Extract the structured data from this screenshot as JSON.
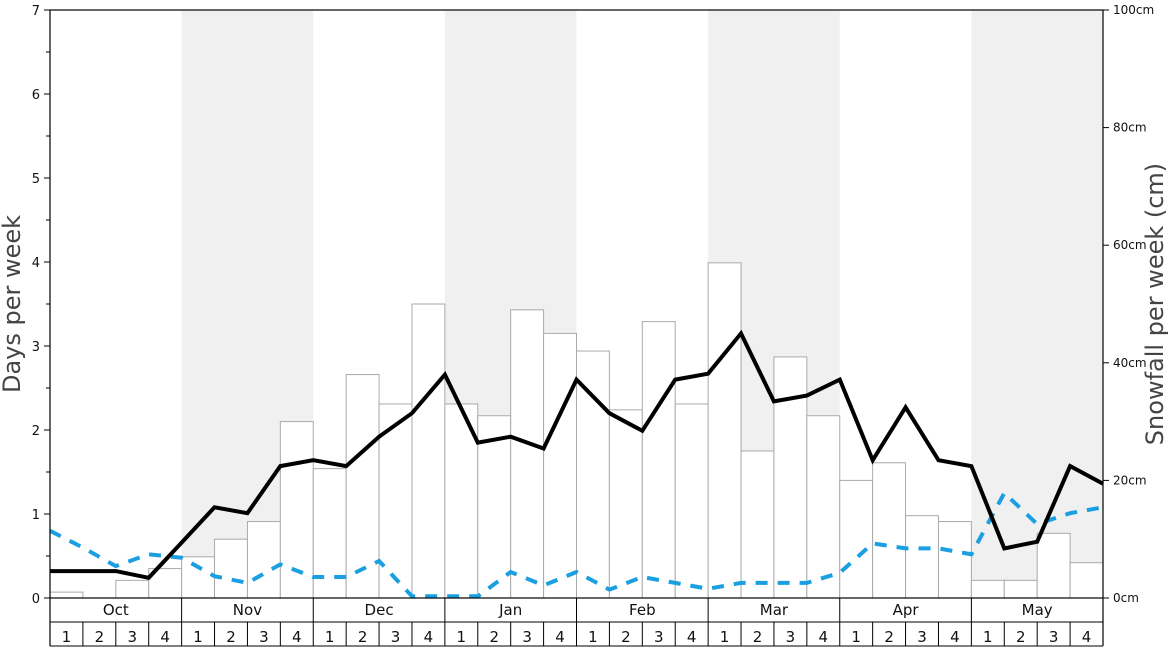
{
  "chart_data": {
    "type": "bar+line",
    "months": [
      "Oct",
      "Nov",
      "Dec",
      "Jan",
      "Feb",
      "Mar",
      "Apr",
      "May"
    ],
    "weeks": [
      "1",
      "2",
      "3",
      "4"
    ],
    "ylabel_left": "Days per week",
    "ylabel_right": "Snowfall per week (cm)",
    "ylim_left": [
      0,
      7
    ],
    "yticks_left": [
      "0",
      "1",
      "2",
      "3",
      "4",
      "5",
      "6",
      "7"
    ],
    "ylim_right": [
      0,
      100
    ],
    "yticks_right": [
      "0cm",
      "20cm",
      "40cm",
      "60cm",
      "80cm",
      "100cm"
    ],
    "shaded_months": [
      "Nov",
      "Jan",
      "Mar",
      "May"
    ],
    "bars_snowfall_cm": [
      1,
      0,
      3,
      5,
      7,
      10,
      13,
      30,
      22,
      38,
      33,
      50,
      33,
      31,
      49,
      45,
      42,
      32,
      47,
      33,
      57,
      25,
      41,
      31,
      20,
      23,
      14,
      13,
      3,
      3,
      11,
      6
    ],
    "line_black_days": [
      0.32,
      0.32,
      0.32,
      0.24,
      0.66,
      1.08,
      1.01,
      1.57,
      1.64,
      1.57,
      1.92,
      2.2,
      2.66,
      1.85,
      1.92,
      1.78,
      2.6,
      2.2,
      1.99,
      2.6,
      2.67,
      3.15,
      2.34,
      2.41,
      2.6,
      1.64,
      2.27,
      1.64,
      1.57,
      0.59,
      0.67,
      1.57,
      1.36
    ],
    "line_blue_dashed_days": [
      0.8,
      0.6,
      0.38,
      0.52,
      0.48,
      0.26,
      0.18,
      0.4,
      0.25,
      0.25,
      0.44,
      0.02,
      0.02,
      0.02,
      0.31,
      0.15,
      0.31,
      0.1,
      0.25,
      0.18,
      0.11,
      0.18,
      0.18,
      0.18,
      0.3,
      0.65,
      0.59,
      0.59,
      0.52,
      1.25,
      0.88,
      1.01,
      1.08
    ],
    "colors": {
      "bar_fill": "#ffffff",
      "bar_stroke": "#aaaaaa",
      "line_black": "#000000",
      "line_blue": "#1a9fe0",
      "shade": "#f0f0f0"
    }
  }
}
